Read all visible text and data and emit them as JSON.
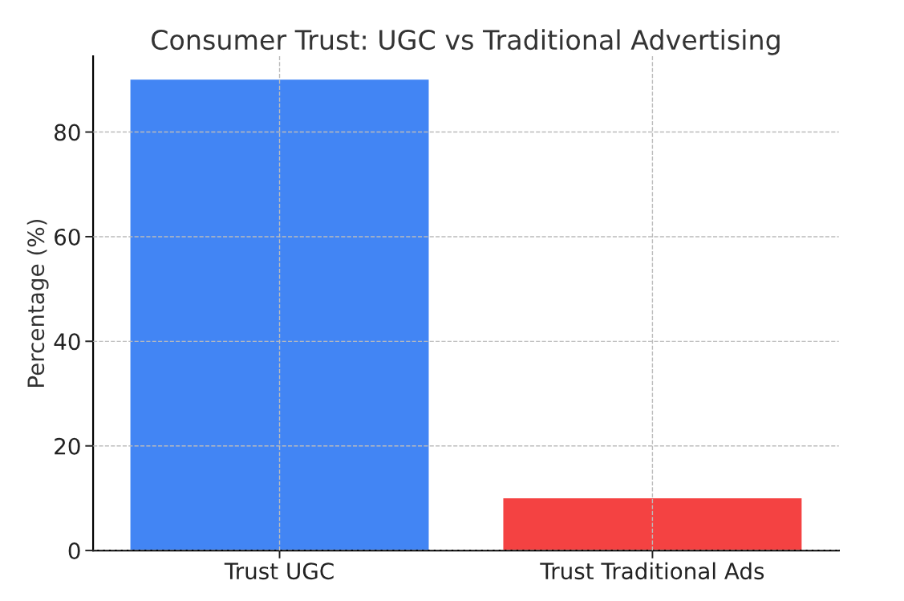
{
  "chart_data": {
    "type": "bar",
    "title": "Consumer Trust: UGC vs Traditional Advertising",
    "ylabel": "Percentage (%)",
    "categories": [
      "Trust UGC",
      "Trust Traditional Ads"
    ],
    "values": [
      90,
      10
    ],
    "colors": [
      "#4285f4",
      "#f44242"
    ],
    "ylim": [
      0,
      94.5
    ],
    "yticks": [
      0,
      20,
      40,
      60,
      80
    ],
    "grid": true,
    "line_style": "dashed"
  }
}
